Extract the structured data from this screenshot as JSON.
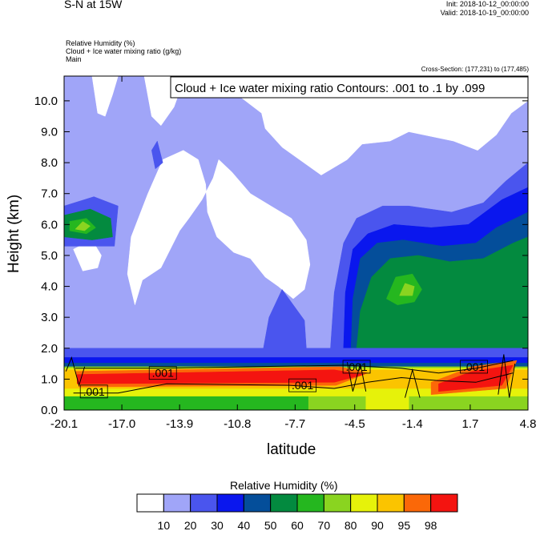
{
  "header": {
    "title": "S-N at 15W",
    "init": "Init: 2018-10-12_00:00:00",
    "valid": "Valid: 2018-10-19_00:00:00",
    "field1": "Relative Humidity   (%)",
    "field2": "Cloud + Ice water mixing ratio   (g/kg)",
    "field3": "Main",
    "cross_section": "Cross-Section: (177,231) to (177,485)"
  },
  "chart_data": {
    "type": "heatmap",
    "title": "Cloud + Ice water mixing ratio Contours: .001 to .1 by .099",
    "xlabel": "latitude",
    "ylabel": "Height (km)",
    "x_ticks": [
      "-20.1",
      "-17.0",
      "-13.9",
      "-10.8",
      "-7.7",
      "-4.5",
      "-1.4",
      "1.7",
      "4.8"
    ],
    "y_ticks": [
      "0.0",
      "1.0",
      "2.0",
      "3.0",
      "4.0",
      "5.0",
      "6.0",
      "7.0",
      "8.0",
      "9.0",
      "10.0"
    ],
    "xlim": [
      -20.1,
      4.8
    ],
    "ylim": [
      0,
      10.8
    ],
    "contour_labels": [
      {
        "text": ".001",
        "x": -14.8,
        "y": 1.2
      },
      {
        "text": ".001",
        "x": -18.5,
        "y": 0.6
      },
      {
        "text": ".001",
        "x": -7.3,
        "y": 0.8
      },
      {
        "text": ".001",
        "x": -4.4,
        "y": 1.4
      },
      {
        "text": ".001",
        "x": 1.9,
        "y": 1.4
      }
    ],
    "colorbar": {
      "title": "Relative Humidity  (%)",
      "labels": [
        "10",
        "20",
        "30",
        "40",
        "50",
        "60",
        "70",
        "80",
        "90",
        "95",
        "98"
      ],
      "colors": [
        "#ffffff",
        "#a0a5f8",
        "#4a55ee",
        "#0a17ee",
        "#044e9a",
        "#038a3f",
        "#25b71f",
        "#8ad420",
        "#e6f20a",
        "#fbc400",
        "#fb6808",
        "#f41410"
      ]
    },
    "regions": [
      {
        "color": "#a0a5f8",
        "poly": [
          [
            -20.1,
            10.8
          ],
          [
            4.8,
            10.8
          ],
          [
            4.8,
            2.0
          ],
          [
            -20.1,
            2.0
          ]
        ]
      },
      {
        "color": "#ffffff",
        "poly": [
          [
            -18.6,
            10.8
          ],
          [
            -18.3,
            9.6
          ],
          [
            -17.9,
            9.5
          ],
          [
            -17.5,
            10.2
          ],
          [
            -17.2,
            10.8
          ]
        ]
      },
      {
        "color": "#ffffff",
        "poly": [
          [
            -15.8,
            10.8
          ],
          [
            -15.4,
            9.5
          ],
          [
            -14.9,
            9.2
          ],
          [
            -14.2,
            9.8
          ],
          [
            -13.6,
            10.8
          ]
        ]
      },
      {
        "color": "#ffffff",
        "poly": [
          [
            -10.8,
            10.8
          ],
          [
            -10.8,
            10.2
          ],
          [
            -9.5,
            9.6
          ],
          [
            -9.3,
            9.1
          ],
          [
            -8.4,
            8.5
          ],
          [
            -6.3,
            7.6
          ],
          [
            -4.9,
            8.1
          ],
          [
            -4.1,
            8.6
          ],
          [
            -2.6,
            8.7
          ],
          [
            -1.6,
            9.0
          ],
          [
            0.8,
            8.7
          ],
          [
            2.1,
            8.4
          ],
          [
            3.1,
            8.9
          ],
          [
            3.9,
            9.6
          ],
          [
            4.8,
            10.0
          ],
          [
            4.8,
            10.8
          ]
        ]
      },
      {
        "color": "#ffffff",
        "poly": [
          [
            -15.6,
            7.0
          ],
          [
            -14.8,
            8.1
          ],
          [
            -13.7,
            8.4
          ],
          [
            -12.9,
            8.1
          ],
          [
            -12.5,
            7.3
          ],
          [
            -12.4,
            6.4
          ],
          [
            -11.9,
            5.6
          ],
          [
            -11.0,
            5.1
          ],
          [
            -10.1,
            4.9
          ],
          [
            -9.3,
            4.3
          ],
          [
            -8.6,
            4.0
          ],
          [
            -7.8,
            3.6
          ],
          [
            -7.2,
            3.9
          ],
          [
            -6.9,
            4.7
          ],
          [
            -7.1,
            5.5
          ],
          [
            -7.9,
            6.2
          ],
          [
            -9.0,
            6.6
          ],
          [
            -10.1,
            7.0
          ],
          [
            -11.1,
            7.7
          ],
          [
            -11.8,
            8.1
          ],
          [
            -12.1,
            7.5
          ],
          [
            -12.7,
            6.8
          ],
          [
            -13.4,
            6.2
          ],
          [
            -13.9,
            5.8
          ],
          [
            -14.9,
            4.6
          ],
          [
            -15.9,
            4.2
          ],
          [
            -16.3,
            3.4
          ],
          [
            -16.7,
            4.4
          ],
          [
            -16.5,
            5.6
          ]
        ]
      },
      {
        "color": "#ffffff",
        "poly": [
          [
            -19.6,
            5.2
          ],
          [
            -18.6,
            5.5
          ],
          [
            -18.1,
            5.0
          ],
          [
            -18.3,
            4.6
          ],
          [
            -19.1,
            4.5
          ]
        ]
      },
      {
        "color": "#4a55ee",
        "poly": [
          [
            -20.1,
            5.3
          ],
          [
            -17.4,
            5.3
          ],
          [
            -17.2,
            6.6
          ],
          [
            -18.5,
            6.9
          ],
          [
            -20.1,
            6.6
          ]
        ]
      },
      {
        "color": "#4a55ee",
        "poly": [
          [
            -15.4,
            8.4
          ],
          [
            -15.1,
            8.7
          ],
          [
            -14.8,
            8.0
          ],
          [
            -15.2,
            7.8
          ]
        ]
      },
      {
        "color": "#4a55ee",
        "poly": [
          [
            -9.4,
            2.0
          ],
          [
            -9.1,
            3.0
          ],
          [
            -8.4,
            3.9
          ],
          [
            -7.2,
            2.9
          ],
          [
            -7.1,
            2.0
          ]
        ]
      },
      {
        "color": "#4a55ee",
        "poly": [
          [
            -5.8,
            2.0
          ],
          [
            -5.6,
            3.8
          ],
          [
            -5.1,
            5.4
          ],
          [
            -4.4,
            6.2
          ],
          [
            -3.0,
            6.6
          ],
          [
            -1.6,
            6.6
          ],
          [
            0.7,
            6.4
          ],
          [
            2.4,
            6.7
          ],
          [
            3.6,
            7.4
          ],
          [
            4.8,
            8.0
          ],
          [
            4.8,
            2.0
          ]
        ]
      },
      {
        "color": "#0a17ee",
        "poly": [
          [
            -5.1,
            2.0
          ],
          [
            -5.0,
            3.8
          ],
          [
            -4.6,
            5.2
          ],
          [
            -3.8,
            5.7
          ],
          [
            -2.4,
            6.0
          ],
          [
            -0.4,
            5.9
          ],
          [
            1.6,
            6.0
          ],
          [
            3.4,
            6.8
          ],
          [
            4.8,
            7.2
          ],
          [
            4.8,
            2.0
          ]
        ]
      },
      {
        "color": "#044e9a",
        "poly": [
          [
            -4.7,
            2.0
          ],
          [
            -4.6,
            3.6
          ],
          [
            -4.2,
            4.9
          ],
          [
            -3.3,
            5.4
          ],
          [
            -1.9,
            5.5
          ],
          [
            0.2,
            5.3
          ],
          [
            2.0,
            5.4
          ],
          [
            3.1,
            5.9
          ],
          [
            4.8,
            6.4
          ],
          [
            4.8,
            2.0
          ]
        ]
      },
      {
        "color": "#038a3f",
        "poly": [
          [
            -4.4,
            2.0
          ],
          [
            -4.2,
            3.2
          ],
          [
            -3.6,
            4.3
          ],
          [
            -2.6,
            4.9
          ],
          [
            -1.1,
            5.0
          ],
          [
            0.6,
            4.8
          ],
          [
            2.4,
            4.9
          ],
          [
            4.0,
            5.4
          ],
          [
            4.8,
            5.6
          ],
          [
            4.8,
            2.0
          ]
        ]
      },
      {
        "color": "#25b71f",
        "poly": [
          [
            -2.8,
            3.6
          ],
          [
            -2.3,
            4.3
          ],
          [
            -1.4,
            4.4
          ],
          [
            -0.9,
            3.9
          ],
          [
            -1.3,
            3.5
          ],
          [
            -2.2,
            3.4
          ]
        ]
      },
      {
        "color": "#8ad420",
        "poly": [
          [
            -2.1,
            3.7
          ],
          [
            -1.8,
            4.1
          ],
          [
            -1.3,
            4.0
          ],
          [
            -1.4,
            3.7
          ]
        ]
      },
      {
        "color": "#038a3f",
        "poly": [
          [
            -20.1,
            5.6
          ],
          [
            -18.6,
            5.5
          ],
          [
            -17.5,
            5.6
          ],
          [
            -17.6,
            6.2
          ],
          [
            -18.7,
            6.5
          ],
          [
            -20.1,
            6.3
          ]
        ]
      },
      {
        "color": "#25b71f",
        "poly": [
          [
            -19.8,
            5.8
          ],
          [
            -18.9,
            5.7
          ],
          [
            -18.4,
            5.9
          ],
          [
            -18.9,
            6.2
          ],
          [
            -19.8,
            6.1
          ]
        ]
      },
      {
        "color": "#8ad420",
        "poly": [
          [
            -19.5,
            5.85
          ],
          [
            -19.0,
            5.8
          ],
          [
            -18.7,
            5.95
          ],
          [
            -19.1,
            6.1
          ]
        ]
      },
      {
        "color": "#4a55ee",
        "poly": [
          [
            -20.1,
            2.0
          ],
          [
            4.8,
            2.0
          ],
          [
            4.8,
            1.55
          ],
          [
            -20.1,
            1.55
          ]
        ]
      },
      {
        "color": "#0a17ee",
        "poly": [
          [
            -20.1,
            1.7
          ],
          [
            4.8,
            1.7
          ],
          [
            4.8,
            1.45
          ],
          [
            -20.1,
            1.45
          ]
        ]
      },
      {
        "color": "#044e9a",
        "poly": [
          [
            -20.1,
            1.52
          ],
          [
            4.8,
            1.52
          ],
          [
            4.8,
            1.35
          ],
          [
            -20.1,
            1.35
          ]
        ]
      },
      {
        "color": "#8ad420",
        "poly": [
          [
            -20.1,
            0.0
          ],
          [
            4.8,
            0.0
          ],
          [
            4.8,
            1.4
          ],
          [
            -20.1,
            1.4
          ]
        ]
      },
      {
        "color": "#25b71f",
        "poly": [
          [
            -20.1,
            0.0
          ],
          [
            -7.0,
            0.0
          ],
          [
            -7.0,
            0.45
          ],
          [
            -20.1,
            0.45
          ]
        ]
      },
      {
        "color": "#e6f20a",
        "poly": [
          [
            -20.1,
            0.45
          ],
          [
            4.8,
            0.45
          ],
          [
            4.8,
            1.35
          ],
          [
            -20.1,
            1.35
          ]
        ]
      },
      {
        "color": "#fbc400",
        "poly": [
          [
            -20.1,
            0.7
          ],
          [
            4.8,
            0.7
          ],
          [
            4.8,
            1.3
          ],
          [
            -20.1,
            1.3
          ]
        ]
      },
      {
        "color": "#fb6808",
        "poly": [
          [
            -19.3,
            0.75
          ],
          [
            -5.5,
            0.8
          ],
          [
            -3.8,
            1.2
          ],
          [
            -5.3,
            1.4
          ],
          [
            -14.9,
            1.3
          ],
          [
            -19.5,
            1.25
          ]
        ]
      },
      {
        "color": "#f41410",
        "poly": [
          [
            -19.4,
            0.85
          ],
          [
            -5.6,
            0.9
          ],
          [
            -4.0,
            1.15
          ],
          [
            -5.6,
            1.3
          ],
          [
            -14.9,
            1.2
          ],
          [
            -19.4,
            1.15
          ]
        ]
      },
      {
        "color": "#fb6808",
        "poly": [
          [
            -0.4,
            0.5
          ],
          [
            3.6,
            0.7
          ],
          [
            4.2,
            1.6
          ],
          [
            1.8,
            1.4
          ],
          [
            -0.4,
            0.9
          ]
        ]
      },
      {
        "color": "#f41410",
        "poly": [
          [
            0.0,
            0.6
          ],
          [
            3.4,
            0.8
          ],
          [
            4.0,
            1.45
          ],
          [
            1.8,
            1.25
          ],
          [
            0.0,
            0.85
          ]
        ]
      },
      {
        "color": "#e6f20a",
        "poly": [
          [
            -3.9,
            0.0
          ],
          [
            -1.6,
            0.0
          ],
          [
            -1.6,
            0.45
          ],
          [
            -3.9,
            0.45
          ]
        ]
      }
    ],
    "contour_lines": [
      [
        [
          -19.6,
          0.55
        ],
        [
          -17.2,
          0.55
        ],
        [
          -14.6,
          0.85
        ],
        [
          -8.0,
          0.8
        ],
        [
          -5.6,
          0.7
        ],
        [
          -3.8,
          0.9
        ],
        [
          -2.0,
          1.05
        ],
        [
          0.0,
          0.95
        ],
        [
          2.0,
          0.9
        ],
        [
          4.0,
          1.2
        ]
      ],
      [
        [
          -19.5,
          1.35
        ],
        [
          -15.0,
          1.35
        ],
        [
          -10.0,
          1.4
        ],
        [
          -5.0,
          1.45
        ],
        [
          -2.0,
          1.35
        ],
        [
          0.0,
          1.2
        ],
        [
          2.0,
          1.35
        ],
        [
          4.0,
          1.6
        ]
      ],
      [
        [
          -20.0,
          1.25
        ],
        [
          -19.7,
          1.7
        ],
        [
          -19.3,
          0.8
        ],
        [
          -19.0,
          1.4
        ]
      ],
      [
        [
          -4.9,
          1.55
        ],
        [
          -4.6,
          0.6
        ],
        [
          -4.2,
          1.5
        ],
        [
          -3.9,
          0.6
        ]
      ],
      [
        [
          -1.8,
          0.4
        ],
        [
          -1.4,
          1.3
        ],
        [
          -1.0,
          0.4
        ]
      ],
      [
        [
          3.2,
          0.5
        ],
        [
          3.5,
          1.8
        ],
        [
          3.8,
          0.4
        ],
        [
          4.1,
          1.5
        ]
      ]
    ]
  }
}
